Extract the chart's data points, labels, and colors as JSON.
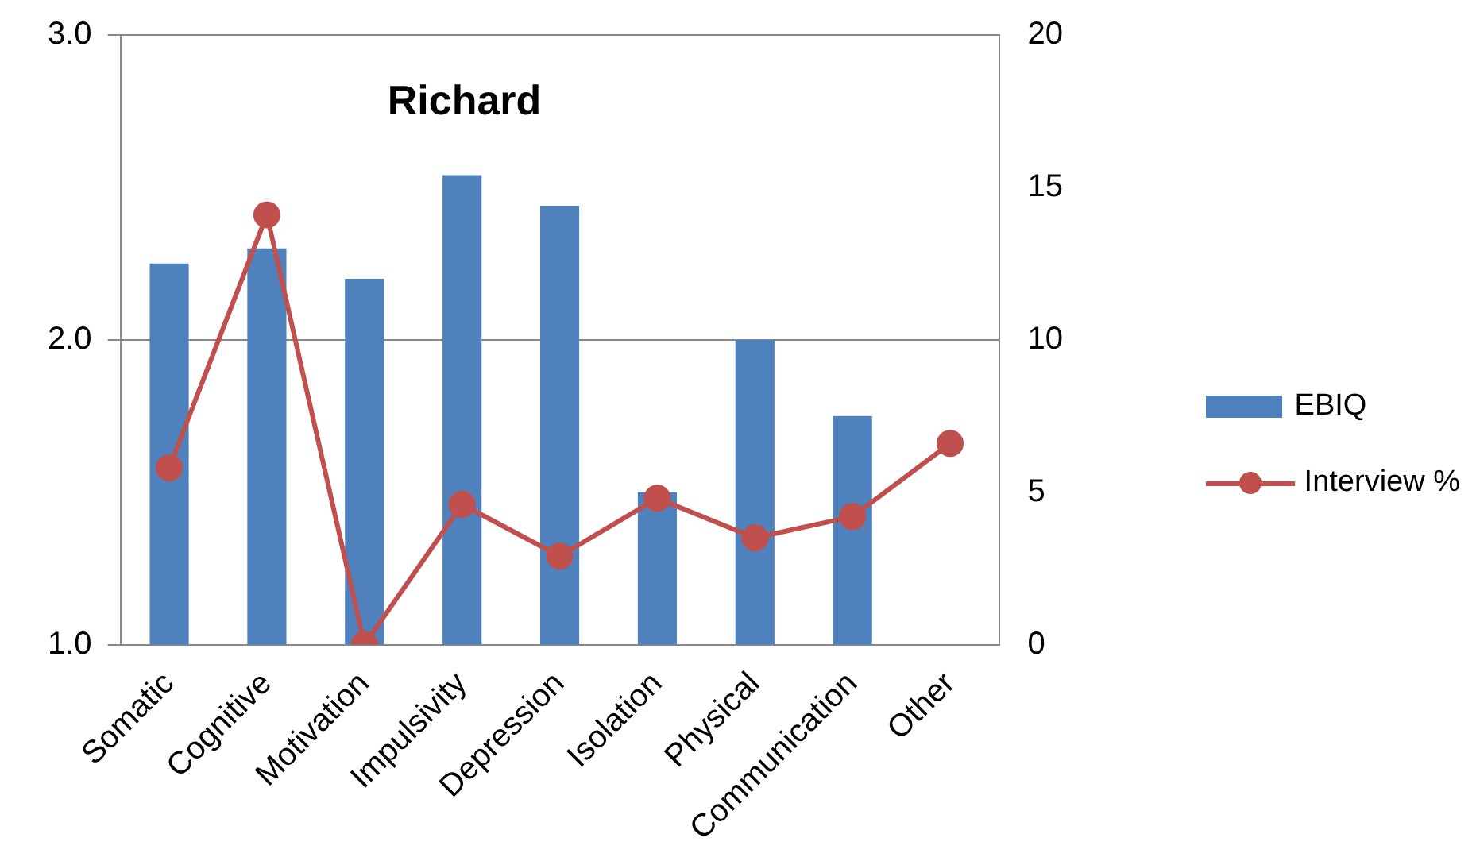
{
  "chart_data": {
    "type": "bar",
    "title": "Richard",
    "categories": [
      "Somatic",
      "Cognitive",
      "Motivation",
      "Impulsivity",
      "Depression",
      "Isolation",
      "Physical",
      "Communication",
      "Other"
    ],
    "series": [
      {
        "name": "EBIQ",
        "type": "bar",
        "color": "#4f81bd",
        "values": [
          2.25,
          2.3,
          2.2,
          2.54,
          2.44,
          1.5,
          2.0,
          1.75,
          null
        ]
      },
      {
        "name": "Interview %",
        "type": "line",
        "axis": "y2",
        "color": "#c0504d",
        "values": [
          5.8,
          14.1,
          0,
          4.6,
          2.9,
          4.8,
          3.5,
          4.2,
          6.6
        ]
      }
    ],
    "ylim": [
      1,
      3
    ],
    "yticks": [
      {
        "value": 1,
        "label": "1.0"
      },
      {
        "value": 2,
        "label": "2.0"
      },
      {
        "value": 3,
        "label": "3.0"
      }
    ],
    "y2lim": [
      0,
      20
    ],
    "y2ticks": [
      0,
      5,
      10,
      15,
      20
    ],
    "grid": "y",
    "legend": "right",
    "marker": "circle",
    "line_style": "solid"
  }
}
